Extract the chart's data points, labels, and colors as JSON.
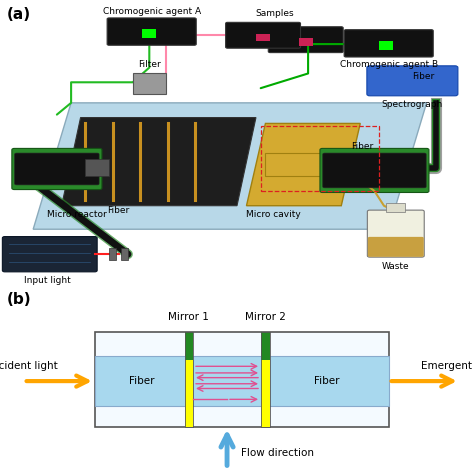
{
  "background_color": "#ffffff",
  "panel_a": {
    "label": "(a)",
    "platform_color": "#b8d8e8",
    "platform_edge": "#8aaabb",
    "reactor_color": "#1e1e1e",
    "channel_color": "#c89020",
    "cavity_color": "#d4aa30",
    "fiber_green": "#2a8a2a",
    "fiber_black": "#111111",
    "input_box_color": "#1a2535",
    "filter_color": "#999999",
    "spectrograph_color": "#3366cc",
    "waste_bottle_color": "#f0f0d8",
    "waste_liquid_color": "#c8a040",
    "tube_green": "#22bb22",
    "tube_pink": "#ff88aa",
    "tube_green2": "#00aa00",
    "label_fontsize": 11,
    "text_fontsize": 6.5
  },
  "panel_b": {
    "label": "(b)",
    "box_facecolor": "#f0f8ff",
    "box_edgecolor": "#555555",
    "fiber_band_color": "#a8d8ee",
    "fiber_band_edge": "#88aacc",
    "mirror_yellow": "#ffff00",
    "mirror_green": "#006600",
    "arrow_pink": "#e05090",
    "arrow_orange": "#FFA500",
    "arrow_blue": "#55aadd",
    "label_fontsize": 11,
    "text_fontsize": 7.5,
    "mirror1_label": "Mirror 1",
    "mirror2_label": "Mirror 2",
    "incident_label": "Incident light",
    "emergent_label": "Emergent light",
    "fiber_left_label": "Fiber",
    "fiber_right_label": "Fiber",
    "flow_label": "Flow direction"
  }
}
